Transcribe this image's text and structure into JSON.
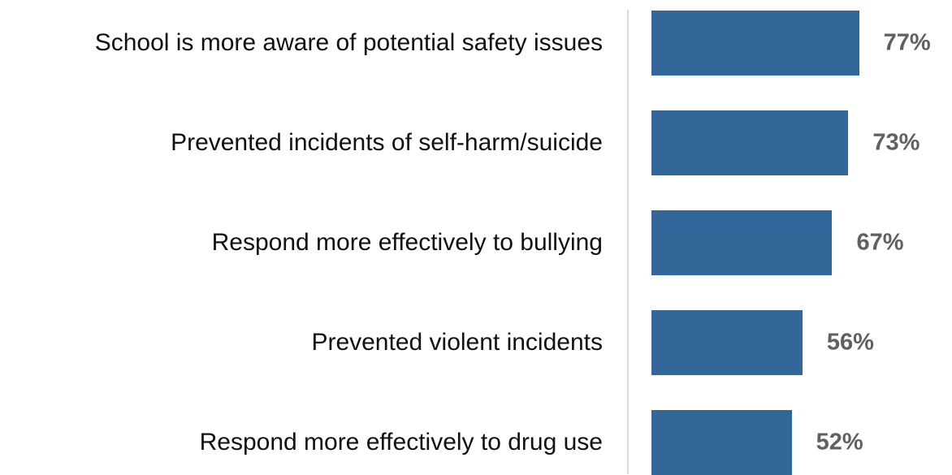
{
  "chart_data": {
    "type": "bar",
    "orientation": "horizontal",
    "categories": [
      "School is more aware of potential safety issues",
      "Prevented incidents of self-harm/suicide",
      "Respond more effectively to bullying",
      "Prevented violent incidents",
      "Respond more effectively to drug use"
    ],
    "values": [
      77,
      73,
      67,
      56,
      52
    ],
    "value_labels": [
      "77%",
      "73%",
      "67%",
      "56%",
      "52%"
    ],
    "xlim": [
      0,
      100
    ],
    "grid": false,
    "legend": "none",
    "bar_color": "#336699",
    "value_label_color": "#606060"
  }
}
